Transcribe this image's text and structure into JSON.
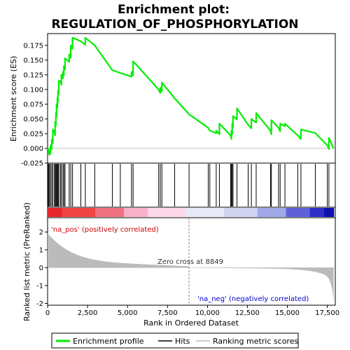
{
  "chart_data": {
    "type": "line",
    "title_line1": "Enrichment plot:",
    "title_line2": "REGULATION_OF_PHOSPHORYLATION",
    "xlabel": "Rank in Ordered Dataset",
    "ylabel_top": "Enrichment score (ES)",
    "ylabel_bottom": "Ranked list metric (PreRanked)",
    "xlim": [
      0,
      18000
    ],
    "ylim_top": [
      -0.025,
      0.195
    ],
    "ylim_bottom": [
      -2.1,
      2.8
    ],
    "x_ticks": [
      0,
      2500,
      5000,
      7500,
      10000,
      12500,
      15000,
      17500
    ],
    "x_tick_labels": [
      "0",
      "2,500",
      "5,000",
      "7,500",
      "10,000",
      "12,500",
      "15,000",
      "17,500"
    ],
    "y_ticks_top": [
      -0.025,
      0.0,
      0.025,
      0.05,
      0.075,
      0.1,
      0.125,
      0.15,
      0.175
    ],
    "y_tick_labels_top": [
      "-0.025",
      "0.000",
      "0.025",
      "0.050",
      "0.075",
      "0.100",
      "0.125",
      "0.150",
      "0.175"
    ],
    "y_ticks_bottom": [
      -2,
      -1,
      0,
      1,
      2
    ],
    "y_tick_labels_bottom": [
      "-2",
      "-1",
      "0",
      "1",
      "2"
    ],
    "zero_cross": 8849,
    "zero_cross_label": "Zero cross at 8849",
    "pos_label": "'na_pos' (positively correlated)",
    "neg_label": "'na_neg' (negatively correlated)",
    "legend": [
      {
        "label": "Enrichment profile",
        "color": "#00ee00"
      },
      {
        "label": "Hits",
        "color": "#000000"
      },
      {
        "label": "Ranking metric scores",
        "color": "#bbbbbb"
      }
    ],
    "total_genes": 17900,
    "es_start": 0.0,
    "hits": [
      {
        "rank": 30,
        "es": 0.0
      },
      {
        "rank": 60,
        "es": -0.005
      },
      {
        "rank": 120,
        "es": -0.003
      },
      {
        "rank": 180,
        "es": 0.005
      },
      {
        "rank": 260,
        "es": 0.015
      },
      {
        "rank": 330,
        "es": 0.032
      },
      {
        "rank": 430,
        "es": 0.028
      },
      {
        "rank": 470,
        "es": 0.045
      },
      {
        "rank": 520,
        "es": 0.06
      },
      {
        "rank": 560,
        "es": 0.075
      },
      {
        "rank": 610,
        "es": 0.085
      },
      {
        "rank": 650,
        "es": 0.098
      },
      {
        "rank": 700,
        "es": 0.115
      },
      {
        "rank": 800,
        "es": 0.114
      },
      {
        "rank": 860,
        "es": 0.125
      },
      {
        "rank": 960,
        "es": 0.13
      },
      {
        "rank": 1020,
        "es": 0.14
      },
      {
        "rank": 1090,
        "es": 0.153
      },
      {
        "rank": 1350,
        "es": 0.16
      },
      {
        "rank": 1450,
        "es": 0.175
      },
      {
        "rank": 1560,
        "es": 0.188
      },
      {
        "rank": 2080,
        "es": 0.182
      },
      {
        "rank": 2360,
        "es": 0.188
      },
      {
        "rank": 2950,
        "es": 0.175
      },
      {
        "rank": 4050,
        "es": 0.133
      },
      {
        "rank": 4550,
        "es": 0.128
      },
      {
        "rank": 5250,
        "es": 0.13
      },
      {
        "rank": 5350,
        "es": 0.148
      },
      {
        "rank": 6950,
        "es": 0.1
      },
      {
        "rank": 7050,
        "es": 0.103
      },
      {
        "rank": 7150,
        "es": 0.112
      },
      {
        "rank": 7950,
        "es": 0.085
      },
      {
        "rank": 8850,
        "es": 0.058
      },
      {
        "rank": 10050,
        "es": 0.035
      },
      {
        "rank": 10150,
        "es": 0.03
      },
      {
        "rank": 10550,
        "es": 0.03
      },
      {
        "rank": 10750,
        "es": 0.042
      },
      {
        "rank": 11450,
        "es": 0.022
      },
      {
        "rank": 11500,
        "es": 0.03
      },
      {
        "rank": 11550,
        "es": 0.042
      },
      {
        "rank": 11600,
        "es": 0.055
      },
      {
        "rank": 11850,
        "es": 0.068
      },
      {
        "rank": 12550,
        "es": 0.04
      },
      {
        "rank": 12750,
        "es": 0.05
      },
      {
        "rank": 13050,
        "es": 0.06
      },
      {
        "rank": 13950,
        "es": 0.03
      },
      {
        "rank": 14000,
        "es": 0.048
      },
      {
        "rank": 14450,
        "es": 0.035
      },
      {
        "rank": 14550,
        "es": 0.042
      },
      {
        "rank": 14850,
        "es": 0.042
      },
      {
        "rank": 15650,
        "es": 0.022
      },
      {
        "rank": 15850,
        "es": 0.032
      },
      {
        "rank": 16750,
        "es": 0.026
      },
      {
        "rank": 17500,
        "es": 0.005
      },
      {
        "rank": 17600,
        "es": 0.018
      }
    ]
  }
}
